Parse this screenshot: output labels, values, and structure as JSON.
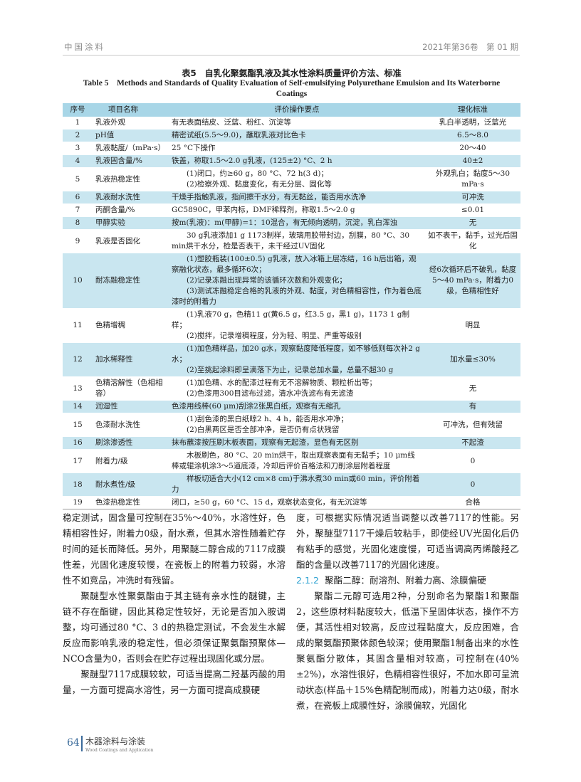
{
  "header": {
    "journal": "中国涂料",
    "issue": "2021年第36卷　第 01 期"
  },
  "table": {
    "caption_cn": "表5　自乳化聚氨酯乳液及其水性涂料质量评价方法、标准",
    "caption_en": "Table 5　Methods and Standards of Quality Evaluation of Self-emulsifying Polyurethane Emulsion and Its Waterborne Coatings",
    "columns": [
      "序号",
      "项目名称",
      "评价操作要点",
      "理化标准"
    ],
    "rows": [
      {
        "no": "1",
        "name": "乳液外观",
        "method": [
          "有无表面结皮、泛蓝、粉红、沉淀等"
        ],
        "std": "乳白半透明，泛蓝光"
      },
      {
        "no": "2",
        "name": "pH值",
        "method": [
          "精密试纸(5.5～9.0)，蘸取乳液对比色卡"
        ],
        "std": "6.5～8.0"
      },
      {
        "no": "3",
        "name": "乳液黏度/（mPa·s）",
        "method": [
          "25 °C下操作"
        ],
        "std": "20～40"
      },
      {
        "no": "4",
        "name": "乳液固含量/%",
        "method": [
          "铁盖，称取1.5～2.0 g乳液，(125±2) °C、2 h"
        ],
        "std": "40±2"
      },
      {
        "no": "5",
        "name": "乳液热稳定性",
        "method": [
          "(1)闭口，约≥60 g，80 °C、72 h(3 d)；",
          "(2)检察外观、黏度变化，有无分层、固化等"
        ],
        "std": "外观乳白；黏度5～30 mPa·s"
      },
      {
        "no": "6",
        "name": "乳液耐水洗性",
        "method": [
          "干燥手指触乳液，指间擦干水分，有无黏丝，能否用水洗净"
        ],
        "std": "可冲洗"
      },
      {
        "no": "7",
        "name": "丙酮含量/%",
        "method": [
          "GC5890C，甲苯内标，DMF稀释剂，称取1.5～2.0 g"
        ],
        "std": "≤0.01"
      },
      {
        "no": "8",
        "name": "甲醇实验",
        "method": [
          "按m(乳液)：m(甲醇)=1：10混合，有无倾向透明，沉淀，乳白浑浊"
        ],
        "std": "无"
      },
      {
        "no": "9",
        "name": "乳液是否固化",
        "method": [
          "30 g乳液添加1 g 1173制样，玻璃用胶带封边，刮膜，80 °C、30 min烘干水分，检是否表干，未干经过UV固化"
        ],
        "std": "如不表干，黏手，过光后固化"
      },
      {
        "no": "10",
        "name": "耐冻融稳定性",
        "method": [
          "(1)塑胶瓶装(100±0.5) g乳液，放入冰箱上层冻结，16 h后出箱，观察融化状态，最多循环6次；",
          "(2)记录冻融出现异常的该循环次数和外观变化；",
          "(3)测试冻融稳定合格的乳液的外观、黏度，对色精相容性，作为着色底漆时的附着力"
        ],
        "std": "经6次循环后不破乳，黏度5～40 mPa·s，附着力0级，色精相性好"
      },
      {
        "no": "11",
        "name": "色精增稠",
        "method": [
          "(1)乳液70 g，色精11 g(黄6.5 g，红3.5 g，黑1 g)，1173 1 g制样；",
          "(2)搅拌，记录增稠程度，分为轻、明显、严重等级别"
        ],
        "std": "明显"
      },
      {
        "no": "12",
        "name": "加水稀释性",
        "method": [
          "(1)加色精样品，加20 g水，观察黏度降低程度，如不够低则每次补2 g水；",
          "(2)至挑起涂料即呈滴落下为止，记录总加水量，总量不超30 g"
        ],
        "std": "加水量≤30%"
      },
      {
        "no": "13",
        "name": "色精溶解性（色相相容）",
        "method": [
          "(1)加色精、水的配漆过程有无不溶解物质、颗粒析出等；",
          "(2)色漆用300目滤布过滤，清水冲洗滤布有无滤渣"
        ],
        "std": "无"
      },
      {
        "no": "14",
        "name": "润湿性",
        "method": [
          "色漆用线棒(60 μm)刮涂2张黑白纸，观察有无缩孔"
        ],
        "std": "有"
      },
      {
        "no": "15",
        "name": "色漆耐水洗性",
        "method": [
          "(1)刮色漆的黑白纸晾2 h、4 h，能否用水冲净；",
          "(2)白黑两区是否全部冲净，是否仍有点状残留"
        ],
        "std": "可冲洗，但有残留"
      },
      {
        "no": "16",
        "name": "刷涂渗透性",
        "method": [
          "抹布蘸漆按压刷木板表面，观察有无起渣，显色有无区别"
        ],
        "std": "不起渣"
      },
      {
        "no": "17",
        "name": "附着力/级",
        "method": [
          "木板刷色，80 °C、20 min烘干，取出观察表面有无黏手；10 μm线棒或辊涂机涂3～5道底漆，冷却后评价百格法和刀削涂层附着程度"
        ],
        "std": "0"
      },
      {
        "no": "18",
        "name": "耐水煮性/级",
        "method": [
          "样板切适合大小(12 cm×8 cm)于沸水煮30 min或60 min，评价附着力"
        ],
        "std": "0"
      },
      {
        "no": "19",
        "name": "色漆热稳定性",
        "method": [
          "闭口，≥50 g，60 °C、15 d，观察状态变化，有无沉淀等"
        ],
        "std": "合格"
      }
    ]
  },
  "body": {
    "left": [
      "稳定测试，固含量可控制在35%～40%，水溶性好，色精相容性好，附着力0级，耐水煮，但其水溶性随着贮存时间的延长而降低。另外，用聚醚二醇合成的7117成膜性差，光固化速度较慢，在瓷板上的附着力较弱，水溶性不如竞品，冲洗时有残留。",
      "聚醚型水性聚氨酯由于其主链有亲水性的醚键，主链不存在酯键，因此其稳定性较好，无论是否加入胺调整，均可通过80 °C、3 d的热稳定测试，不会发生水解反应而影响乳液的稳定性，但必须保证聚氨酯预聚体—NCO含量为0，否则会在贮存过程出现固化或分层。",
      "聚醚型7117成膜较软，可适当提高二羟基丙酸的用量，一方面可提高水溶性，另一方面可提高成膜硬"
    ],
    "right_p1": "度，可根据实际情况适当调整以改善7117的性能。另外，聚醚型7117干燥后较粘手，即使经UV光固化后仍有粘手的感觉，光固化速度慢，可适当调高丙烯酸羟乙酯的含量以改善7117的光固化速度。",
    "section_no": "2.1.2",
    "section_title": "聚酯二醇：耐溶剂、附着力高、涂膜偏硬",
    "right_p2": "聚酯二元醇可选用2种，分别命名为聚酯1和聚酯2，这些原材料黏度较大，低温下呈固体状态，操作不方便，其活性相对较高，反应过程黏度大，反应困难，合成的聚氨酯预聚体颜色较深；使用聚酯1制备出来的水性聚氨酯分散体，其固含量相对较高，可控制在(40%±2%)，水溶性很好，色精相容性很好，不加水即可呈流动状态(样品＋15%色精配制而成)，附着力达0级，耐水煮，在瓷板上成膜性好，涂膜偏软，光固化"
  },
  "footer": {
    "page": "64",
    "journal_cn": "木器涂料与涂装",
    "journal_en": "Wood Coatings and Application"
  }
}
